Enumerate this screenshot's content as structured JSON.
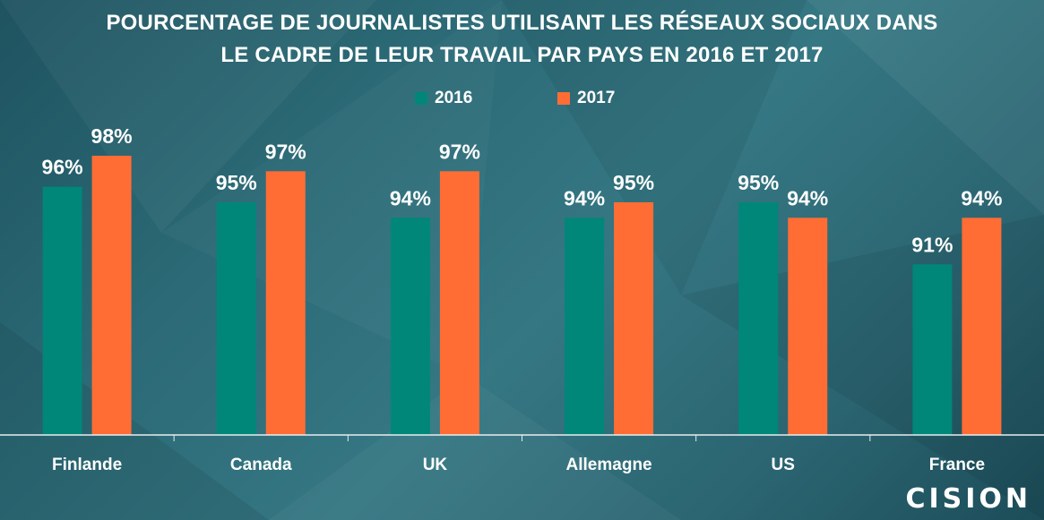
{
  "title": {
    "line1": "POURCENTAGE DE JOURNALISTES UTILISANT LES RÉSEAUX SOCIAUX DANS",
    "line2": "LE CADRE DE LEUR TRAVAIL PAR PAYS EN 2016 ET 2017"
  },
  "brand": "CISION",
  "colors": {
    "series_2016": "#00877a",
    "series_2017": "#ff6d35",
    "axis": "#e8eef0"
  },
  "chart_data": {
    "type": "bar",
    "title": "POURCENTAGE DE JOURNALISTES UTILISANT LES RÉSEAUX SOCIAUX DANS LE CADRE DE LEUR TRAVAIL PAR PAYS EN 2016 ET 2017",
    "categories": [
      "Finlande",
      "Canada",
      "UK",
      "Allemagne",
      "US",
      "France"
    ],
    "series": [
      {
        "name": "2016",
        "values": [
          96,
          95,
          94,
          94,
          95,
          91
        ],
        "labels": [
          "96%",
          "95%",
          "94%",
          "94%",
          "95%",
          "91%"
        ]
      },
      {
        "name": "2017",
        "values": [
          98,
          97,
          97,
          95,
          94,
          94
        ],
        "labels": [
          "98%",
          "97%",
          "97%",
          "95%",
          "94%",
          "94%"
        ]
      }
    ],
    "ylim": [
      80,
      100
    ],
    "grid": false,
    "legend": "top-center"
  }
}
